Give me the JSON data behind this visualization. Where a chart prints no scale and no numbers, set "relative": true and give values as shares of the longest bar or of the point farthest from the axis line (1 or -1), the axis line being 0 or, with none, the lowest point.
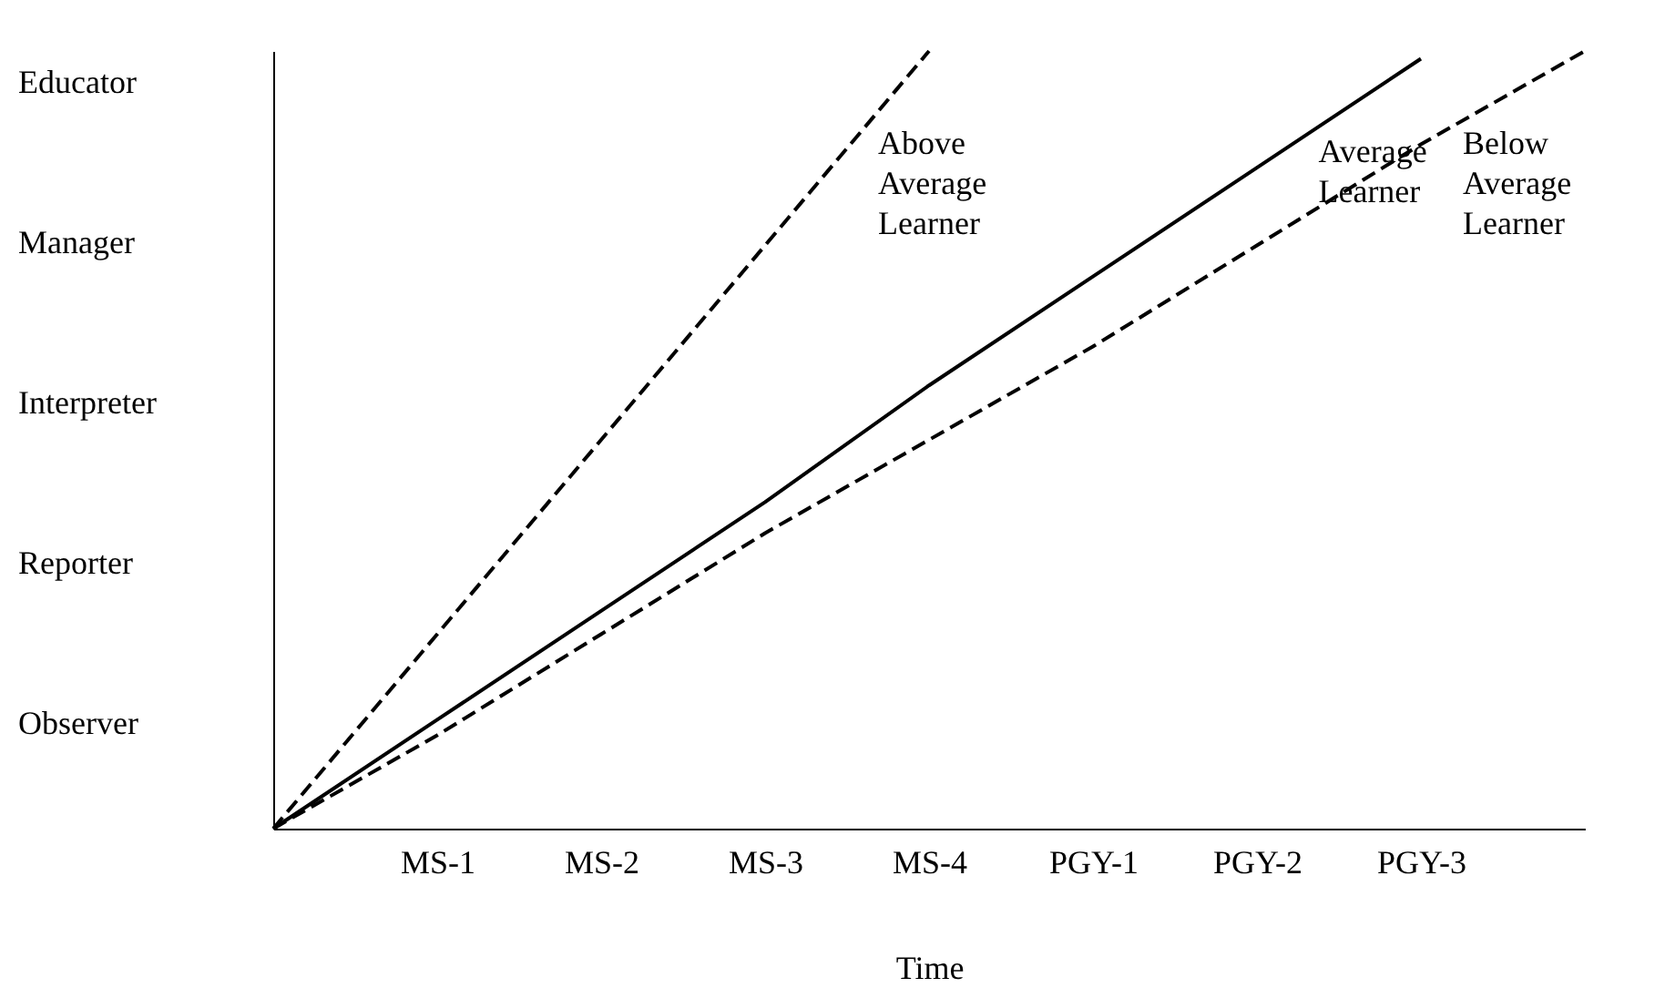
{
  "chart_data": {
    "type": "line",
    "xlabel": "Time",
    "relative": true,
    "categories": [
      null,
      "MS-1",
      "MS-2",
      "MS-3",
      "MS-4",
      "PGY-1",
      "PGY-2",
      "PGY-3",
      null
    ],
    "annotations": [
      "Educator",
      "Manager",
      "Interpreter",
      "Reporter",
      "Observer"
    ],
    "grid": false,
    "legend": false,
    "marker": "none",
    "series": [
      {
        "name": "Above Average Learner",
        "color": "#000000",
        "line_style": "dashed",
        "values": [
          0,
          0.25,
          0.5,
          0.75,
          1,
          null,
          null,
          null,
          null
        ]
      },
      {
        "name": "Average Learner",
        "color": "#000000",
        "line_style": "solid",
        "values": [
          0,
          0.14,
          0.28,
          0.42,
          0.57,
          0.71,
          0.85,
          0.99,
          null
        ]
      },
      {
        "name": "Below Average Learner",
        "color": "#000000",
        "line_style": "dashed",
        "values": [
          0,
          0.12,
          0.25,
          0.38,
          0.5,
          0.62,
          0.75,
          0.88,
          1
        ]
      }
    ]
  }
}
